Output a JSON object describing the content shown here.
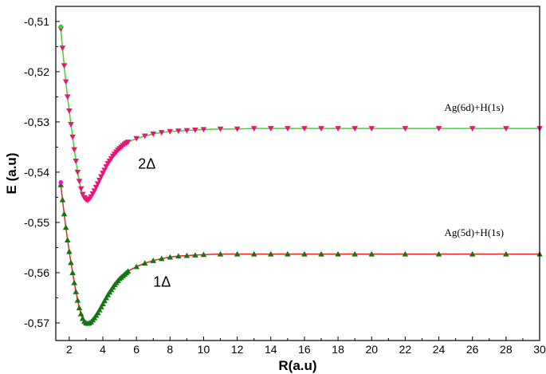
{
  "chart_data": {
    "type": "line",
    "title": "",
    "xlabel": "R(a.u)",
    "ylabel": "E (a.u)",
    "xlim": [
      1.2,
      30
    ],
    "ylim": [
      -0.5735,
      -0.507
    ],
    "x_ticks": [
      2,
      4,
      6,
      8,
      10,
      12,
      14,
      16,
      18,
      20,
      22,
      24,
      26,
      28,
      30
    ],
    "x_tick_labels": [
      "2",
      "4",
      "6",
      "8",
      "10",
      "12",
      "14",
      "16",
      "18",
      "20",
      "22",
      "24",
      "26",
      "28",
      "30"
    ],
    "y_ticks": [
      -0.51,
      -0.52,
      -0.53,
      -0.54,
      -0.55,
      -0.56,
      -0.57
    ],
    "y_tick_labels": [
      "-0,51",
      "-0,52",
      "-0,53",
      "-0,54",
      "-0,55",
      "-0,56",
      "-0,57"
    ],
    "grid": false,
    "series": [
      {
        "name": "2Δ",
        "asymptote_label": "Ag(6d)+H(1s)",
        "line_color": "#33dd22",
        "marker": "triangle-down",
        "marker_color": "#ee1177",
        "x": [
          1.5,
          1.6,
          1.7,
          1.8,
          1.9,
          2.0,
          2.1,
          2.2,
          2.3,
          2.4,
          2.5,
          2.6,
          2.7,
          2.8,
          2.9,
          3.0,
          3.1,
          3.2,
          3.3,
          3.4,
          3.5,
          3.6,
          3.7,
          3.8,
          3.9,
          4.0,
          4.1,
          4.2,
          4.3,
          4.4,
          4.5,
          4.6,
          4.7,
          4.8,
          4.9,
          5.0,
          5.1,
          5.2,
          5.3,
          5.4,
          5.5,
          6.0,
          6.5,
          7.0,
          7.5,
          8.0,
          8.5,
          9.0,
          9.5,
          10,
          11,
          12,
          13,
          14,
          15,
          16,
          17,
          18,
          19,
          20,
          22,
          24,
          26,
          28,
          30
        ],
        "y": [
          -0.5115,
          -0.5153,
          -0.5188,
          -0.522,
          -0.525,
          -0.5278,
          -0.5305,
          -0.533,
          -0.5355,
          -0.5378,
          -0.54,
          -0.5418,
          -0.5433,
          -0.5444,
          -0.5451,
          -0.5455,
          -0.5456,
          -0.5453,
          -0.5449,
          -0.5443,
          -0.5437,
          -0.543,
          -0.5423,
          -0.5416,
          -0.5409,
          -0.5402,
          -0.5396,
          -0.5389,
          -0.5383,
          -0.5378,
          -0.5373,
          -0.5368,
          -0.5364,
          -0.536,
          -0.5356,
          -0.5353,
          -0.535,
          -0.5347,
          -0.5344,
          -0.5342,
          -0.534,
          -0.5333,
          -0.5328,
          -0.5324,
          -0.5321,
          -0.5319,
          -0.5318,
          -0.5317,
          -0.5316,
          -0.5315,
          -0.5314,
          -0.5314,
          -0.5313,
          -0.5313,
          -0.5313,
          -0.5313,
          -0.5313,
          -0.5313,
          -0.5313,
          -0.5313,
          -0.5313,
          -0.5313,
          -0.5313,
          -0.5313,
          -0.5313
        ]
      },
      {
        "name": "1Δ",
        "asymptote_label": "Ag(5d)+H(1s)",
        "line_color": "#ee2222",
        "marker": "triangle-up",
        "marker_color": "#117711",
        "x": [
          1.5,
          1.6,
          1.7,
          1.8,
          1.9,
          2.0,
          2.1,
          2.2,
          2.3,
          2.4,
          2.5,
          2.6,
          2.7,
          2.8,
          2.9,
          3.0,
          3.1,
          3.2,
          3.3,
          3.4,
          3.5,
          3.6,
          3.7,
          3.8,
          3.9,
          4.0,
          4.1,
          4.2,
          4.3,
          4.4,
          4.5,
          4.6,
          4.7,
          4.8,
          4.9,
          5.0,
          5.1,
          5.2,
          5.3,
          5.4,
          5.5,
          6.0,
          6.5,
          7.0,
          7.5,
          8.0,
          8.5,
          9.0,
          9.5,
          10,
          11,
          12,
          13,
          14,
          15,
          16,
          17,
          18,
          19,
          20,
          22,
          24,
          26,
          28,
          30
        ],
        "y": [
          -0.5425,
          -0.5455,
          -0.5483,
          -0.551,
          -0.5535,
          -0.5558,
          -0.558,
          -0.56,
          -0.562,
          -0.5638,
          -0.5655,
          -0.567,
          -0.5682,
          -0.5691,
          -0.5697,
          -0.57,
          -0.5701,
          -0.57,
          -0.5698,
          -0.5694,
          -0.569,
          -0.5685,
          -0.568,
          -0.5674,
          -0.5668,
          -0.5662,
          -0.5656,
          -0.565,
          -0.5644,
          -0.5639,
          -0.5634,
          -0.5629,
          -0.5624,
          -0.562,
          -0.5616,
          -0.5612,
          -0.5609,
          -0.5606,
          -0.5603,
          -0.56,
          -0.5597,
          -0.5588,
          -0.5581,
          -0.5576,
          -0.5572,
          -0.5569,
          -0.5567,
          -0.5566,
          -0.5565,
          -0.5564,
          -0.5563,
          -0.5563,
          -0.5563,
          -0.5563,
          -0.5563,
          -0.5563,
          -0.5563,
          -0.5563,
          -0.5563,
          -0.5563,
          -0.5563,
          -0.5563,
          -0.5563,
          -0.5563,
          -0.5563
        ]
      }
    ]
  }
}
